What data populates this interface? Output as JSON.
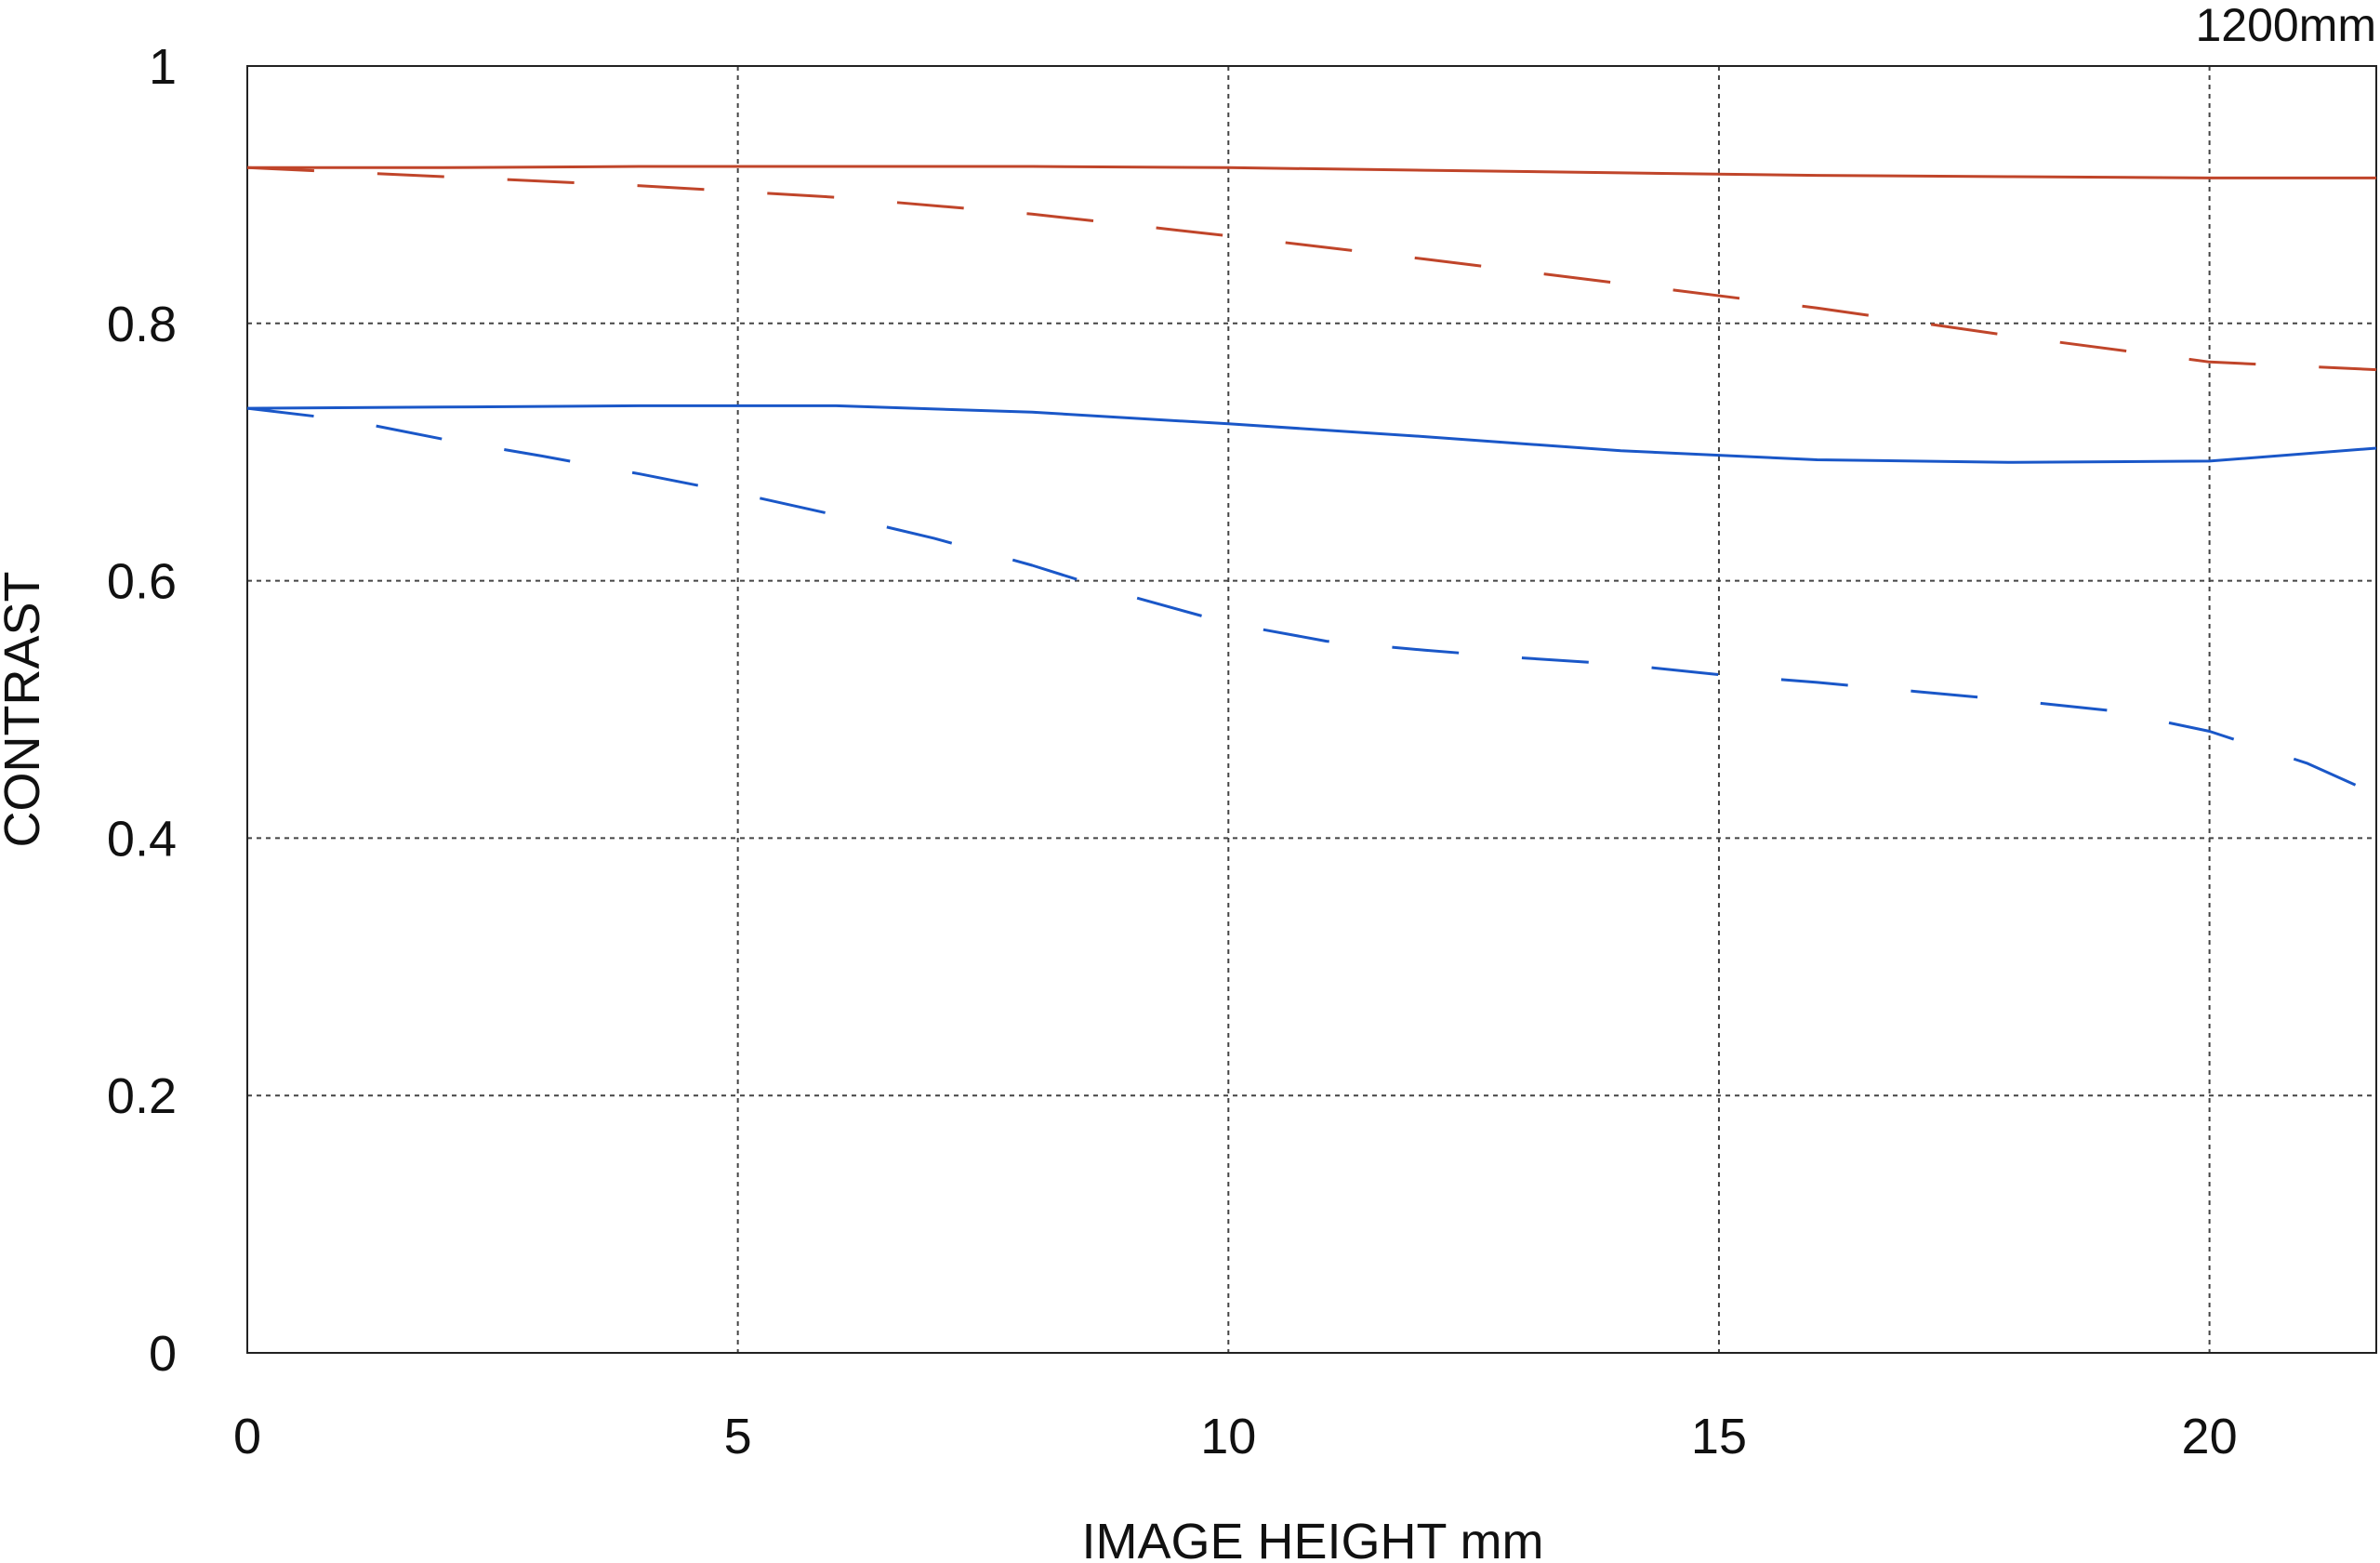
{
  "chart_data": {
    "type": "line",
    "corner_label": "1200mm",
    "xlabel": "IMAGE HEIGHT  mm",
    "ylabel": "CONTRAST",
    "xlim": [
      0,
      21.7
    ],
    "ylim": [
      0,
      1
    ],
    "x_ticks": [
      0,
      5,
      10,
      15,
      20
    ],
    "x_tick_labels": [
      "0",
      "5",
      "10",
      "15",
      "20"
    ],
    "y_ticks": [
      0,
      0.2,
      0.4,
      0.6,
      0.8,
      1
    ],
    "y_tick_labels": [
      "0",
      "0.2",
      "0.4",
      "0.6",
      "0.8",
      "1"
    ],
    "grid": true,
    "legend": "none",
    "series": [
      {
        "color": "#c0452a",
        "style": "solid",
        "points": [
          [
            0,
            0.921
          ],
          [
            2,
            0.921
          ],
          [
            4,
            0.922
          ],
          [
            6,
            0.922
          ],
          [
            8,
            0.922
          ],
          [
            10,
            0.921
          ],
          [
            12,
            0.919
          ],
          [
            14,
            0.917
          ],
          [
            16,
            0.915
          ],
          [
            18,
            0.914
          ],
          [
            20,
            0.913
          ],
          [
            21.7,
            0.913
          ]
        ]
      },
      {
        "color": "#c0452a",
        "style": "dashed",
        "points": [
          [
            0,
            0.921
          ],
          [
            2,
            0.914
          ],
          [
            4,
            0.907
          ],
          [
            6,
            0.898
          ],
          [
            8,
            0.885
          ],
          [
            10,
            0.868
          ],
          [
            12,
            0.85
          ],
          [
            14,
            0.831
          ],
          [
            16,
            0.812
          ],
          [
            18,
            0.79
          ],
          [
            20,
            0.77
          ],
          [
            21.7,
            0.764
          ]
        ]
      },
      {
        "color": "#1a57c8",
        "style": "solid",
        "points": [
          [
            0,
            0.734
          ],
          [
            2,
            0.735
          ],
          [
            4,
            0.736
          ],
          [
            6,
            0.736
          ],
          [
            8,
            0.731
          ],
          [
            10,
            0.722
          ],
          [
            12,
            0.712
          ],
          [
            14,
            0.701
          ],
          [
            16,
            0.694
          ],
          [
            18,
            0.692
          ],
          [
            20,
            0.693
          ],
          [
            21.7,
            0.703
          ]
        ]
      },
      {
        "color": "#1a57c8",
        "style": "dashed",
        "points": [
          [
            0,
            0.734
          ],
          [
            1,
            0.725
          ],
          [
            2,
            0.71
          ],
          [
            3,
            0.697
          ],
          [
            4,
            0.683
          ],
          [
            5,
            0.668
          ],
          [
            6,
            0.651
          ],
          [
            7,
            0.633
          ],
          [
            8,
            0.612
          ],
          [
            9,
            0.588
          ],
          [
            10,
            0.567
          ],
          [
            11,
            0.553
          ],
          [
            12,
            0.546
          ],
          [
            13,
            0.54
          ],
          [
            14,
            0.535
          ],
          [
            15,
            0.527
          ],
          [
            16,
            0.521
          ],
          [
            17,
            0.514
          ],
          [
            18,
            0.507
          ],
          [
            19,
            0.499
          ],
          [
            20,
            0.483
          ],
          [
            21,
            0.458
          ],
          [
            21.7,
            0.434
          ]
        ]
      }
    ]
  }
}
